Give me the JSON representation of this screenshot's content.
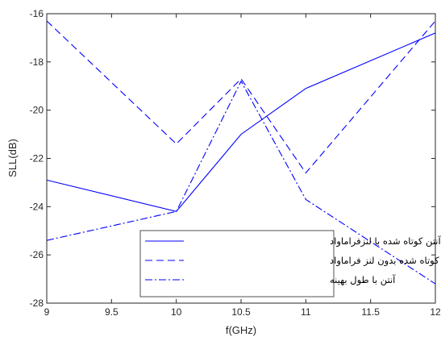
{
  "chart_data": {
    "type": "line",
    "xlabel": "f(GHz)",
    "ylabel": "SLL(dB)",
    "xlim": [
      9,
      12
    ],
    "ylim": [
      -28,
      -16
    ],
    "x_ticks": [
      9,
      9.5,
      10,
      10.5,
      11,
      11.5,
      12
    ],
    "y_ticks": [
      -28,
      -26,
      -24,
      -22,
      -20,
      -18,
      -16
    ],
    "grid": false,
    "legend_position": "bottom-center",
    "x": [
      9,
      10,
      10.5,
      11,
      12
    ],
    "series": [
      {
        "name": "آنتن کوتاه شده با لنزفراماواد",
        "style": "solid",
        "color": "#0000ff",
        "values": [
          -22.9,
          -24.2,
          -21.0,
          -19.1,
          -16.8
        ]
      },
      {
        "name": "آنتن کوتاه شده بدون لنز فراماواد",
        "style": "dashed",
        "color": "#0000ff",
        "values": [
          -16.3,
          -21.4,
          -18.7,
          -22.6,
          -16.3
        ]
      },
      {
        "name": "آنتن با طول بهینه",
        "style": "dashdot",
        "color": "#0000ff",
        "values": [
          -25.4,
          -24.2,
          -18.8,
          -23.7,
          -27.2
        ]
      }
    ]
  }
}
